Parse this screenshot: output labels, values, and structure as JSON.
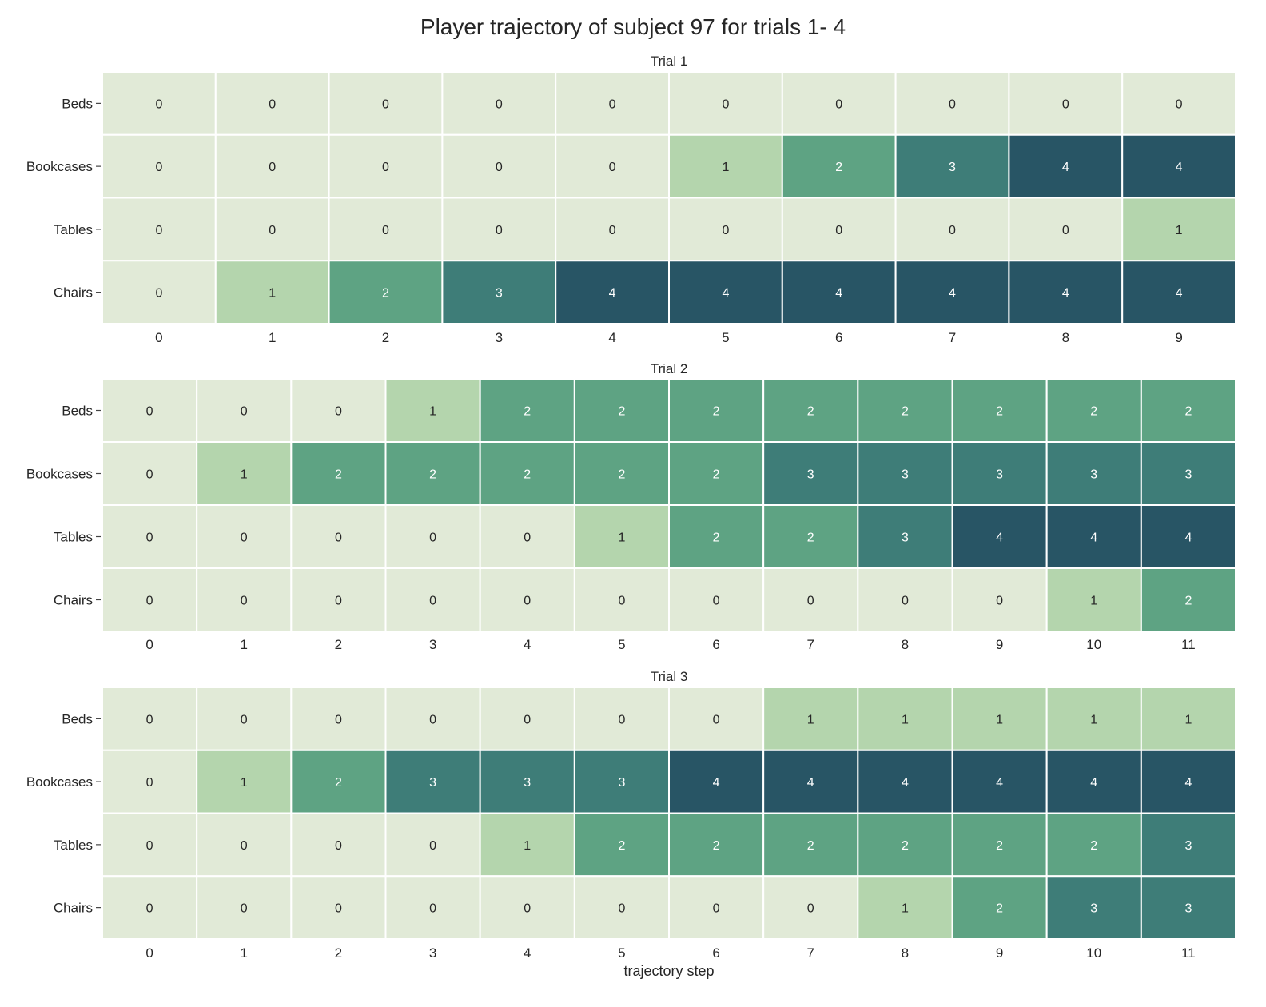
{
  "figure_title": "Player trajectory of subject 97 for trials 1- 4",
  "chart_data": [
    {
      "type": "heatmap",
      "title": "Trial 1",
      "xlabel": "",
      "categories": [
        "Beds",
        "Bookcases",
        "Tables",
        "Chairs"
      ],
      "x": [
        0,
        1,
        2,
        3,
        4,
        5,
        6,
        7,
        8,
        9
      ],
      "values": [
        [
          0,
          0,
          0,
          0,
          0,
          0,
          0,
          0,
          0,
          0
        ],
        [
          0,
          0,
          0,
          0,
          0,
          1,
          2,
          3,
          4,
          4
        ],
        [
          0,
          0,
          0,
          0,
          0,
          0,
          0,
          0,
          0,
          1
        ],
        [
          0,
          1,
          2,
          3,
          4,
          4,
          4,
          4,
          4,
          4
        ]
      ],
      "value_range": [
        0,
        4
      ],
      "annotated": true,
      "grid": false
    },
    {
      "type": "heatmap",
      "title": "Trial 2",
      "xlabel": "",
      "categories": [
        "Beds",
        "Bookcases",
        "Tables",
        "Chairs"
      ],
      "x": [
        0,
        1,
        2,
        3,
        4,
        5,
        6,
        7,
        8,
        9,
        10,
        11
      ],
      "values": [
        [
          0,
          0,
          0,
          1,
          2,
          2,
          2,
          2,
          2,
          2,
          2,
          2
        ],
        [
          0,
          1,
          2,
          2,
          2,
          2,
          2,
          3,
          3,
          3,
          3,
          3
        ],
        [
          0,
          0,
          0,
          0,
          0,
          1,
          2,
          2,
          3,
          4,
          4,
          4
        ],
        [
          0,
          0,
          0,
          0,
          0,
          0,
          0,
          0,
          0,
          0,
          1,
          2
        ]
      ],
      "value_range": [
        0,
        4
      ],
      "annotated": true,
      "grid": false
    },
    {
      "type": "heatmap",
      "title": "Trial 3",
      "xlabel": "trajectory step",
      "categories": [
        "Beds",
        "Bookcases",
        "Tables",
        "Chairs"
      ],
      "x": [
        0,
        1,
        2,
        3,
        4,
        5,
        6,
        7,
        8,
        9,
        10,
        11
      ],
      "values": [
        [
          0,
          0,
          0,
          0,
          0,
          0,
          0,
          1,
          1,
          1,
          1,
          1
        ],
        [
          0,
          1,
          2,
          3,
          3,
          3,
          4,
          4,
          4,
          4,
          4,
          4
        ],
        [
          0,
          0,
          0,
          0,
          1,
          2,
          2,
          2,
          2,
          2,
          2,
          3
        ],
        [
          0,
          0,
          0,
          0,
          0,
          0,
          0,
          0,
          1,
          2,
          3,
          3
        ]
      ],
      "value_range": [
        0,
        4
      ],
      "annotated": true,
      "grid": false
    }
  ],
  "colors": {
    "level_0": "#e1ead7",
    "level_1": "#b4d5ad",
    "level_2": "#5ea383",
    "level_3": "#3e7d78",
    "level_4": "#285565",
    "text_dark": "#262626",
    "text_light": "#ffffff",
    "cell_border": "#ffffff"
  }
}
